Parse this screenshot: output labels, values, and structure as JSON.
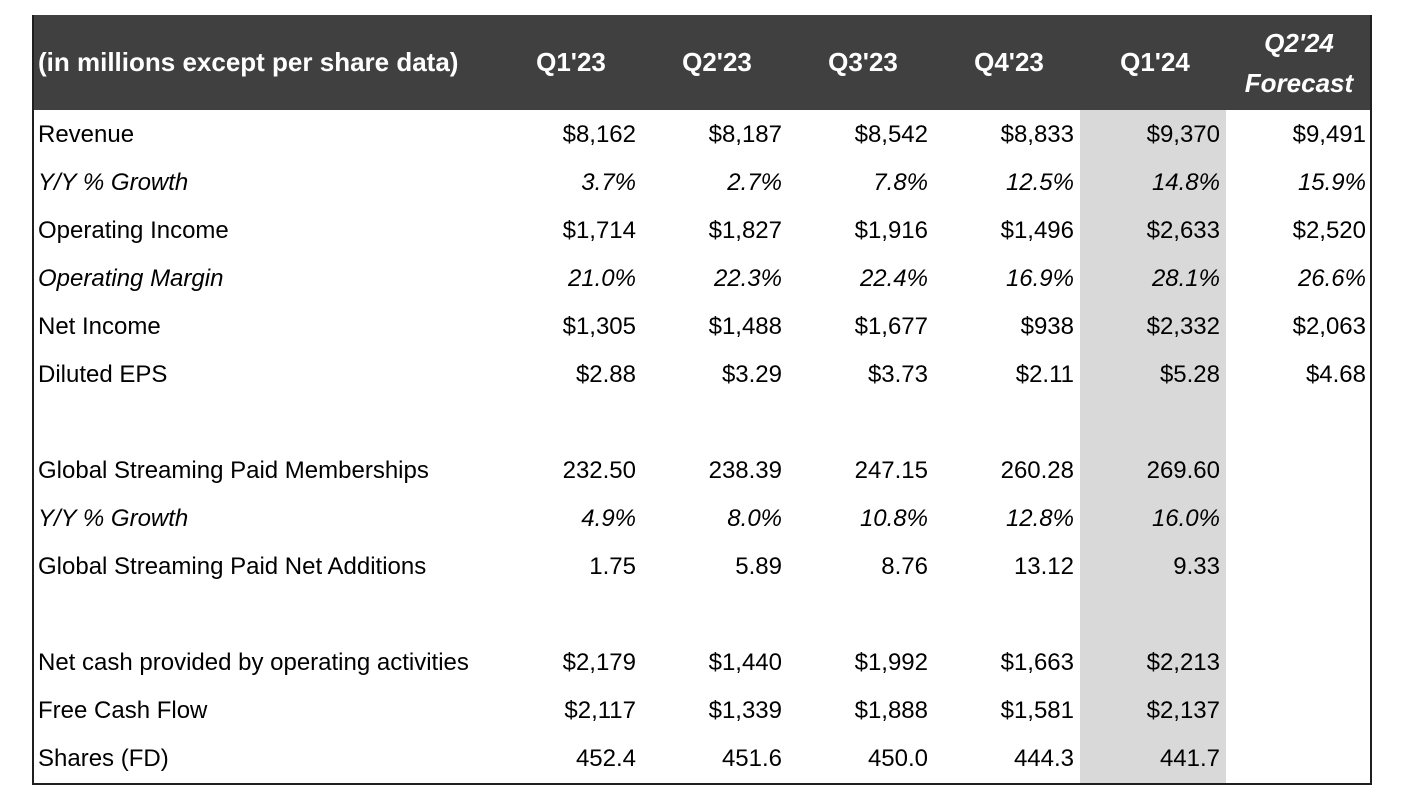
{
  "header": {
    "label": "(in millions except per share data)",
    "columns": [
      "Q1'23",
      "Q2'23",
      "Q3'23",
      "Q4'23",
      "Q1'24"
    ],
    "forecast_line1": "Q2'24",
    "forecast_line2": "Forecast"
  },
  "colors": {
    "header_bg": "#404040",
    "header_text": "#ffffff",
    "highlight_column": "#d9d9d9"
  },
  "rows": [
    {
      "label": "Revenue",
      "italic": false,
      "values": [
        "$8,162",
        "$8,187",
        "$8,542",
        "$8,833",
        "$9,370",
        "$9,491"
      ]
    },
    {
      "label": "Y/Y % Growth",
      "italic": true,
      "values": [
        "3.7%",
        "2.7%",
        "7.8%",
        "12.5%",
        "14.8%",
        "15.9%"
      ]
    },
    {
      "label": "Operating Income",
      "italic": false,
      "values": [
        "$1,714",
        "$1,827",
        "$1,916",
        "$1,496",
        "$2,633",
        "$2,520"
      ]
    },
    {
      "label": "Operating Margin",
      "italic": true,
      "values": [
        "21.0%",
        "22.3%",
        "22.4%",
        "16.9%",
        "28.1%",
        "26.6%"
      ]
    },
    {
      "label": "Net Income",
      "italic": false,
      "values": [
        "$1,305",
        "$1,488",
        "$1,677",
        "$938",
        "$2,332",
        "$2,063"
      ]
    },
    {
      "label": "Diluted EPS",
      "italic": false,
      "values": [
        "$2.88",
        "$3.29",
        "$3.73",
        "$2.11",
        "$5.28",
        "$4.68"
      ]
    },
    {
      "label": "",
      "italic": false,
      "values": [
        "",
        "",
        "",
        "",
        "",
        ""
      ]
    },
    {
      "label": "Global Streaming Paid Memberships",
      "italic": false,
      "values": [
        "232.50",
        "238.39",
        "247.15",
        "260.28",
        "269.60",
        ""
      ]
    },
    {
      "label": "Y/Y % Growth",
      "italic": true,
      "values": [
        "4.9%",
        "8.0%",
        "10.8%",
        "12.8%",
        "16.0%",
        ""
      ]
    },
    {
      "label": "Global Streaming Paid Net Additions",
      "italic": false,
      "values": [
        "1.75",
        "5.89",
        "8.76",
        "13.12",
        "9.33",
        ""
      ]
    },
    {
      "label": "",
      "italic": false,
      "values": [
        "",
        "",
        "",
        "",
        "",
        ""
      ]
    },
    {
      "label": "Net cash provided by operating activities",
      "italic": false,
      "values": [
        "$2,179",
        "$1,440",
        "$1,992",
        "$1,663",
        "$2,213",
        ""
      ]
    },
    {
      "label": "Free Cash Flow",
      "italic": false,
      "values": [
        "$2,117",
        "$1,339",
        "$1,888",
        "$1,581",
        "$2,137",
        ""
      ]
    },
    {
      "label": "Shares (FD)",
      "italic": false,
      "values": [
        "452.4",
        "451.6",
        "450.0",
        "444.3",
        "441.7",
        ""
      ]
    }
  ]
}
